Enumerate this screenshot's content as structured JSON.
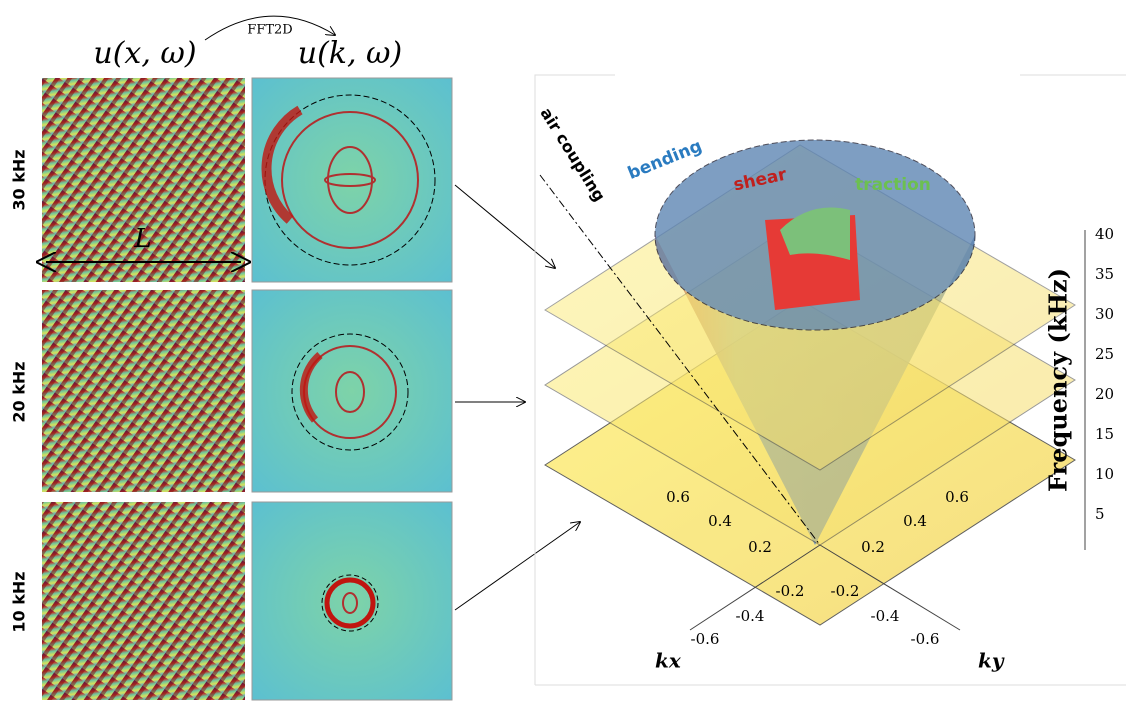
{
  "header": {
    "left_title": "u(x, ω)",
    "transform": "FFT2D",
    "right_title": "u(k, ω)"
  },
  "rows": [
    "30 kHz",
    "20 kHz",
    "10 kHz"
  ],
  "length_label": "L",
  "plot": {
    "annotations": {
      "air_coupling": "air coupling",
      "bending": "bending",
      "shear": "shear",
      "traction": "traction"
    },
    "frequency_label": "Frequency (kHz)",
    "frequency_ticks": [
      "5",
      "10",
      "15",
      "20",
      "25",
      "30",
      "35",
      "40"
    ],
    "kx_label": "kx",
    "ky_label": "ky",
    "kx_ticks": [
      "-0.6",
      "-0.4",
      "-0.2",
      "0.2",
      "0.4",
      "0.6"
    ],
    "ky_ticks": [
      "-0.6",
      "-0.4",
      "-0.2",
      "0.2",
      "0.4",
      "0.6"
    ]
  }
}
